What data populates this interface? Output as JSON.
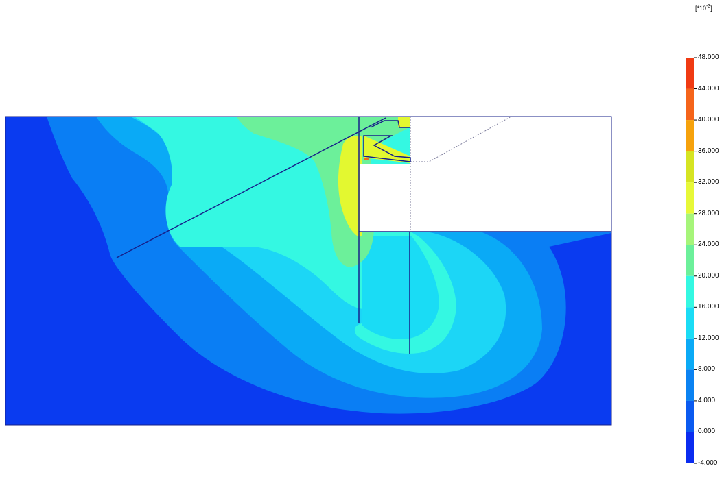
{
  "legend": {
    "unit_prefix": "[*10",
    "unit_exponent": "-3",
    "unit_suffix": "]",
    "ticks": [
      "48.000",
      "44.000",
      "40.000",
      "36.000",
      "32.000",
      "28.000",
      "24.000",
      "20.000",
      "16.000",
      "12.000",
      "8.000",
      "4.000",
      "0.000",
      "-4.000"
    ],
    "bands": [
      {
        "from": 44,
        "to": 48,
        "color": "#f03a12"
      },
      {
        "from": 40,
        "to": 44,
        "color": "#f5641a"
      },
      {
        "from": 36,
        "to": 40,
        "color": "#f6a20c"
      },
      {
        "from": 32,
        "to": 36,
        "color": "#d6e422"
      },
      {
        "from": 28,
        "to": 32,
        "color": "#e7f838"
      },
      {
        "from": 24,
        "to": 28,
        "color": "#a6f57a"
      },
      {
        "from": 20,
        "to": 24,
        "color": "#6cf09a"
      },
      {
        "from": 16,
        "to": 20,
        "color": "#34f8e2"
      },
      {
        "from": 12,
        "to": 16,
        "color": "#1adcf5"
      },
      {
        "from": 8,
        "to": 12,
        "color": "#0aaaf6"
      },
      {
        "from": 4,
        "to": 8,
        "color": "#0a82f2"
      },
      {
        "from": 0,
        "to": 4,
        "color": "#0a5af0"
      },
      {
        "from": -4,
        "to": 0,
        "color": "#0a2cf0"
      }
    ]
  },
  "colors": {
    "outline": "#17208a",
    "excavation": "#ffffff",
    "dotted": "#7a7a9a"
  }
}
